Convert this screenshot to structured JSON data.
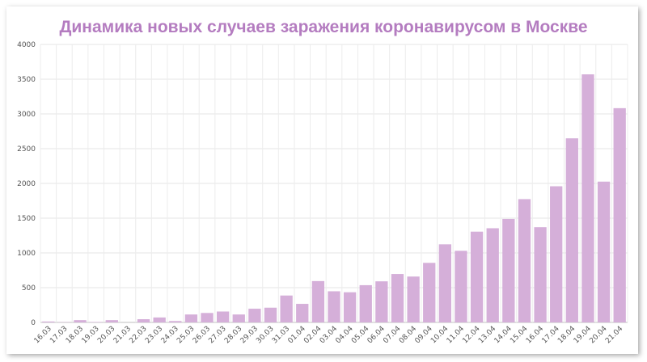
{
  "chart_data": {
    "type": "bar",
    "title": "Динамика новых случаев заражения коронавирусом в Москве",
    "title_color": "#b47cc0",
    "bar_color": "#d5afd9",
    "grid": true,
    "ylim": [
      0,
      4000
    ],
    "yticks": [
      0,
      500,
      1000,
      1500,
      2000,
      2500,
      3000,
      3500,
      4000
    ],
    "xlabel": "",
    "ylabel": "",
    "categories": [
      "16.03",
      "17.03",
      "18.03",
      "19.03",
      "20.03",
      "21.03",
      "22.03",
      "23.03",
      "24.03",
      "25.03",
      "26.03",
      "27.03",
      "28.03",
      "29.03",
      "30.03",
      "31.03",
      "01.04",
      "02.04",
      "03.04",
      "04.04",
      "05.04",
      "06.04",
      "07.04",
      "08.04",
      "09.04",
      "10.04",
      "11.04",
      "12.04",
      "13.04",
      "14.04",
      "15.04",
      "16.04",
      "17.04",
      "18.04",
      "19.04",
      "20.04",
      "21.04"
    ],
    "values": [
      13,
      4,
      33,
      6,
      33,
      0,
      46,
      71,
      20,
      114,
      136,
      157,
      114,
      197,
      212,
      387,
      267,
      595,
      448,
      434,
      536,
      591,
      697,
      660,
      857,
      1124,
      1030,
      1306,
      1355,
      1489,
      1774,
      1370,
      1959,
      2649,
      3570,
      2026,
      3083
    ]
  }
}
